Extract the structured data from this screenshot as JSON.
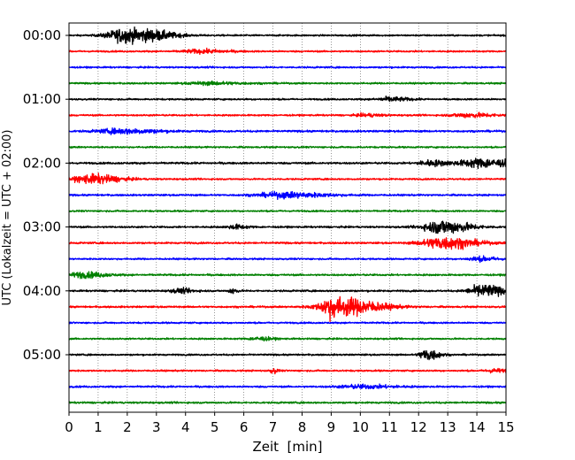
{
  "chart_data": {
    "type": "line",
    "description_kind": "helicorder seismogram (stacked time-series traces)",
    "xlabel": "Zeit  [min]",
    "ylabel": "UTC (Lokalzeit = UTC + 02:00)",
    "xlim": [
      0,
      15
    ],
    "x_ticks": [
      "0",
      "1",
      "2",
      "3",
      "4",
      "5",
      "6",
      "7",
      "8",
      "9",
      "10",
      "11",
      "12",
      "13",
      "14",
      "15"
    ],
    "y_tick_labels": [
      "00:00",
      "01:00",
      "02:00",
      "03:00",
      "04:00",
      "05:00"
    ],
    "grid": "vertical dotted lines at each minute",
    "colors": [
      "#000000",
      "#ff0000",
      "#0000ff",
      "#008000"
    ],
    "rows": [
      {
        "start": "00:00",
        "color": "#000000",
        "events": [
          {
            "t": 1.9,
            "amp": 1.0,
            "width": 1.2
          },
          {
            "t": 3.0,
            "amp": 0.45,
            "width": 1.0
          }
        ],
        "noise": 0.12
      },
      {
        "start": "00:15",
        "color": "#ff0000",
        "events": [
          {
            "t": 4.5,
            "amp": 0.25,
            "width": 1.2
          }
        ],
        "noise": 0.12
      },
      {
        "start": "00:30",
        "color": "#0000ff",
        "events": [],
        "noise": 0.12
      },
      {
        "start": "00:45",
        "color": "#008000",
        "events": [
          {
            "t": 4.8,
            "amp": 0.2,
            "width": 1.5
          }
        ],
        "noise": 0.12
      },
      {
        "start": "01:00",
        "color": "#000000",
        "events": [
          {
            "t": 11.0,
            "amp": 0.3,
            "width": 0.8
          }
        ],
        "noise": 0.12
      },
      {
        "start": "01:15",
        "color": "#ff0000",
        "events": [
          {
            "t": 13.7,
            "amp": 0.3,
            "width": 1.2
          },
          {
            "t": 10.2,
            "amp": 0.2,
            "width": 0.7
          }
        ],
        "noise": 0.12
      },
      {
        "start": "01:30",
        "color": "#0000ff",
        "events": [
          {
            "t": 1.8,
            "amp": 0.35,
            "width": 1.6
          }
        ],
        "noise": 0.14
      },
      {
        "start": "01:45",
        "color": "#008000",
        "events": [],
        "noise": 0.12
      },
      {
        "start": "02:00",
        "color": "#000000",
        "events": [
          {
            "t": 14.1,
            "amp": 0.65,
            "width": 1.4
          },
          {
            "t": 12.4,
            "amp": 0.4,
            "width": 0.8
          }
        ],
        "noise": 0.14
      },
      {
        "start": "02:15",
        "color": "#ff0000",
        "events": [
          {
            "t": 0.8,
            "amp": 0.65,
            "width": 1.2
          }
        ],
        "noise": 0.12
      },
      {
        "start": "02:30",
        "color": "#0000ff",
        "events": [
          {
            "t": 7.4,
            "amp": 0.4,
            "width": 1.8
          }
        ],
        "noise": 0.13
      },
      {
        "start": "02:45",
        "color": "#008000",
        "events": [],
        "noise": 0.12
      },
      {
        "start": "03:00",
        "color": "#000000",
        "events": [
          {
            "t": 12.8,
            "amp": 1.0,
            "width": 1.2
          },
          {
            "t": 5.7,
            "amp": 0.3,
            "width": 0.5
          }
        ],
        "noise": 0.13
      },
      {
        "start": "03:15",
        "color": "#ff0000",
        "events": [
          {
            "t": 12.8,
            "amp": 0.9,
            "width": 1.4
          }
        ],
        "noise": 0.13
      },
      {
        "start": "03:30",
        "color": "#0000ff",
        "events": [
          {
            "t": 14.1,
            "amp": 0.3,
            "width": 0.8
          }
        ],
        "noise": 0.12
      },
      {
        "start": "03:45",
        "color": "#008000",
        "events": [
          {
            "t": 0.5,
            "amp": 0.4,
            "width": 1.0
          }
        ],
        "noise": 0.13
      },
      {
        "start": "04:00",
        "color": "#000000",
        "events": [
          {
            "t": 14.2,
            "amp": 0.9,
            "width": 0.9
          },
          {
            "t": 5.6,
            "amp": 0.45,
            "width": 0.2
          },
          {
            "t": 3.8,
            "amp": 0.3,
            "width": 0.6
          }
        ],
        "noise": 0.13
      },
      {
        "start": "04:15",
        "color": "#ff0000",
        "events": [
          {
            "t": 9.4,
            "amp": 1.3,
            "width": 1.6
          },
          {
            "t": 8.9,
            "amp": 0.8,
            "width": 0.3
          }
        ],
        "noise": 0.13
      },
      {
        "start": "04:30",
        "color": "#0000ff",
        "events": [],
        "noise": 0.12
      },
      {
        "start": "04:45",
        "color": "#008000",
        "events": [
          {
            "t": 6.5,
            "amp": 0.25,
            "width": 0.6
          }
        ],
        "noise": 0.12
      },
      {
        "start": "05:00",
        "color": "#000000",
        "events": [
          {
            "t": 12.3,
            "amp": 0.9,
            "width": 0.5
          }
        ],
        "noise": 0.12
      },
      {
        "start": "05:15",
        "color": "#ff0000",
        "events": [
          {
            "t": 7.0,
            "amp": 0.35,
            "width": 0.2
          },
          {
            "t": 14.6,
            "amp": 0.25,
            "width": 0.6
          }
        ],
        "noise": 0.12
      },
      {
        "start": "05:30",
        "color": "#0000ff",
        "events": [
          {
            "t": 10.0,
            "amp": 0.25,
            "width": 1.5
          }
        ],
        "noise": 0.13
      },
      {
        "start": "05:45",
        "color": "#008000",
        "events": [],
        "noise": 0.13
      }
    ]
  }
}
